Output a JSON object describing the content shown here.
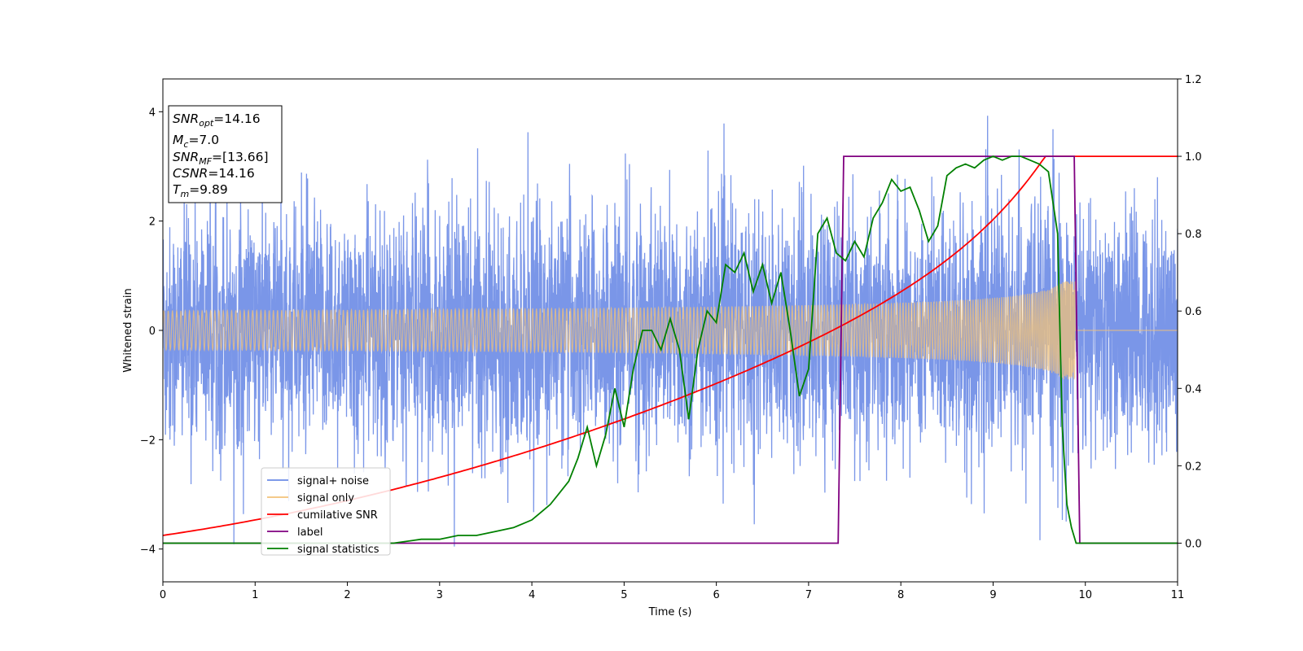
{
  "chart_data": {
    "type": "line",
    "title": "",
    "xlabel": "Time (s)",
    "ylabel": "Whitened strain",
    "xlim": [
      0,
      11
    ],
    "ylim_left": [
      -4.6,
      4.6
    ],
    "ylim_right": [
      -0.1,
      1.2
    ],
    "x_ticks": [
      "0",
      "1",
      "2",
      "3",
      "4",
      "5",
      "6",
      "7",
      "8",
      "9",
      "10",
      "11"
    ],
    "y_left_ticks": [
      "−4",
      "−2",
      "0",
      "2",
      "4"
    ],
    "y_right_ticks": [
      "0.0",
      "0.2",
      "0.4",
      "0.6",
      "0.8",
      "1.0",
      "1.2"
    ],
    "grid": false,
    "legend_position": "lower-left",
    "info_box": {
      "snr_opt_sym": "SNR",
      "snr_opt_sub": "opt",
      "snr_opt_val": "=14.16",
      "mc_sym": "M",
      "mc_sub": "c",
      "mc_val": "=7.0",
      "snr_mf_sym": "SNR",
      "snr_mf_sub": "MF",
      "snr_mf_val": "=[13.66]",
      "csnr_sym": "CSNR",
      "csnr_val": "=14.16",
      "tm_sym": "T",
      "tm_sub": "m",
      "tm_val": "=9.89"
    },
    "series": [
      {
        "name": "signal+ noise",
        "axis": "left",
        "color": "#6b8be6",
        "kind": "noise",
        "std": 1.05,
        "merger_time": 9.89
      },
      {
        "name": "signal only",
        "axis": "left",
        "color": "#f2c27a",
        "kind": "chirp",
        "start_amp": 0.06,
        "end_amp": 0.9,
        "merger_time": 9.89
      },
      {
        "name": "cumilative SNR",
        "axis": "right",
        "color": "#ff0000",
        "x": [
          0,
          1,
          2,
          3,
          4,
          5,
          6,
          7,
          7.5,
          8,
          8.5,
          9,
          9.3,
          9.6,
          9.8,
          9.89,
          11
        ],
        "y": [
          0.02,
          0.07,
          0.115,
          0.16,
          0.205,
          0.25,
          0.295,
          0.345,
          0.375,
          0.41,
          0.46,
          0.55,
          0.62,
          0.73,
          0.87,
          1.0,
          1.0
        ]
      },
      {
        "name": "label",
        "axis": "right",
        "color": "#800080",
        "x": [
          0,
          7.32,
          7.38,
          9.88,
          9.94,
          11
        ],
        "y": [
          0.0,
          0.0,
          1.0,
          1.0,
          0.0,
          0.0
        ]
      },
      {
        "name": "signal statistics",
        "axis": "right",
        "color": "#008000",
        "x": [
          0,
          0.5,
          1,
          1.5,
          2,
          2.5,
          2.8,
          3.0,
          3.2,
          3.4,
          3.6,
          3.8,
          3.9,
          4.0,
          4.1,
          4.2,
          4.3,
          4.4,
          4.5,
          4.6,
          4.7,
          4.8,
          4.9,
          5.0,
          5.1,
          5.2,
          5.3,
          5.4,
          5.5,
          5.6,
          5.7,
          5.8,
          5.9,
          6.0,
          6.1,
          6.2,
          6.3,
          6.4,
          6.5,
          6.6,
          6.7,
          6.8,
          6.9,
          7.0,
          7.1,
          7.2,
          7.3,
          7.4,
          7.5,
          7.6,
          7.7,
          7.8,
          7.9,
          8.0,
          8.1,
          8.2,
          8.3,
          8.4,
          8.5,
          8.6,
          8.7,
          8.8,
          8.9,
          9.0,
          9.1,
          9.2,
          9.3,
          9.4,
          9.5,
          9.6,
          9.7,
          9.75,
          9.8,
          9.85,
          9.9,
          9.95,
          10.0,
          10.5,
          11.0
        ],
        "y": [
          0.0,
          0.0,
          0.0,
          0.0,
          0.0,
          0.0,
          0.01,
          0.01,
          0.02,
          0.02,
          0.03,
          0.04,
          0.05,
          0.06,
          0.08,
          0.1,
          0.13,
          0.16,
          0.22,
          0.3,
          0.2,
          0.28,
          0.4,
          0.3,
          0.45,
          0.55,
          0.55,
          0.5,
          0.58,
          0.5,
          0.32,
          0.5,
          0.6,
          0.57,
          0.72,
          0.7,
          0.75,
          0.65,
          0.72,
          0.62,
          0.7,
          0.55,
          0.38,
          0.45,
          0.8,
          0.84,
          0.75,
          0.73,
          0.78,
          0.74,
          0.84,
          0.88,
          0.94,
          0.91,
          0.92,
          0.86,
          0.78,
          0.82,
          0.95,
          0.97,
          0.98,
          0.97,
          0.99,
          1.0,
          0.99,
          1.0,
          1.0,
          0.99,
          0.98,
          0.96,
          0.8,
          0.3,
          0.1,
          0.04,
          0.0,
          0.0,
          0.0,
          0.0,
          0.0
        ]
      }
    ]
  }
}
